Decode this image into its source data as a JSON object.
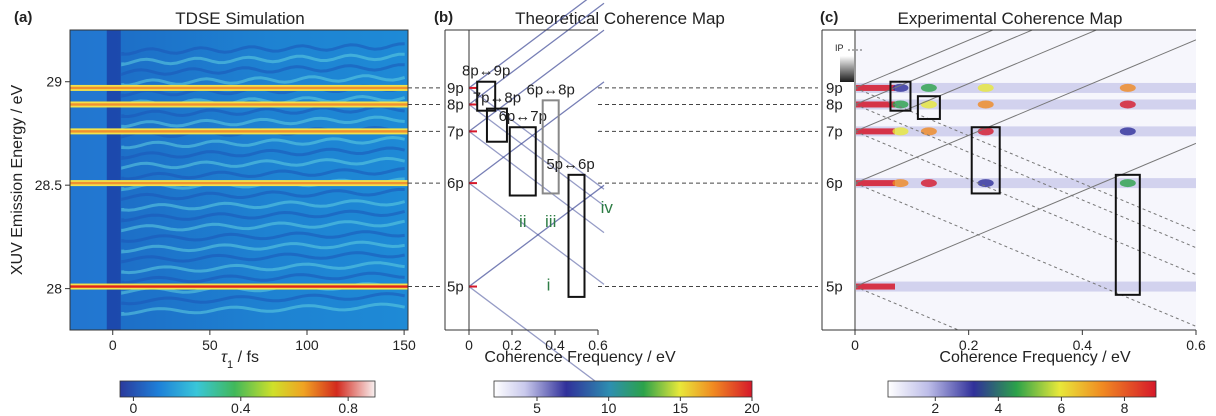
{
  "figure": {
    "shared_ylabel": "XUV Emission Energy / eV",
    "connector_states": [
      "9p",
      "8p",
      "7p",
      "6p",
      "5p"
    ]
  },
  "panels": [
    {
      "label": "(a)",
      "title": "TDSE Simulation",
      "xlabel": "τ1 / fs",
      "xlabel_main": "τ",
      "xlabel_sub": "1",
      "xlabel_unit": " / fs",
      "xticks": [
        "0",
        "50",
        "100",
        "150"
      ],
      "yticks": [
        "29",
        "28.5",
        "28"
      ],
      "colorbar_ticks": [
        "0",
        "0.4",
        "0.8"
      ]
    },
    {
      "label": "(b)",
      "title": "Theoretical Coherence Map",
      "xlabel": "Coherence Frequency / eV",
      "xticks": [
        "0",
        "0.2",
        "0.4",
        "0.6"
      ],
      "state_labels": [
        "9p",
        "8p",
        "7p",
        "6p",
        "5p"
      ],
      "transitions": [
        "8p↔9p",
        "7p↔8p",
        "6p↔7p",
        "6p↔8p",
        "5p↔6p"
      ],
      "markers": [
        "i",
        "ii",
        "iii",
        "iv"
      ],
      "colorbar_ticks": [
        "5",
        "10",
        "15",
        "20"
      ]
    },
    {
      "label": "(c)",
      "title": "Experimental Coherence Map",
      "xlabel": "Coherence Frequency / eV",
      "xticks": [
        "0",
        "0.2",
        "0.4",
        "0.6"
      ],
      "state_labels": [
        "9p",
        "8p",
        "7p",
        "6p",
        "5p"
      ],
      "ip_label": "IP",
      "colorbar_ticks": [
        "2",
        "4",
        "6",
        "8"
      ]
    }
  ],
  "chart_data": [
    {
      "type": "heatmap",
      "title": "TDSE Simulation",
      "xlabel": "τ1 / fs",
      "ylabel": "XUV Emission Energy / eV",
      "xlim": [
        -22,
        152
      ],
      "ylim": [
        27.8,
        29.25
      ],
      "energy_lines_ev": [
        28.01,
        28.51,
        28.76,
        28.89,
        28.97
      ],
      "colorbar": {
        "range": [
          -0.05,
          0.9
        ],
        "ticks": [
          0,
          0.4,
          0.8
        ]
      }
    },
    {
      "type": "heatmap",
      "title": "Theoretical Coherence Map",
      "xlabel": "Coherence Frequency / eV",
      "xlim": [
        0,
        0.6
      ],
      "states_ev": {
        "5p": 28.01,
        "6p": 28.51,
        "7p": 28.76,
        "8p": 28.89,
        "9p": 28.97
      },
      "transitions": [
        {
          "name": "8p↔9p",
          "freq_ev": 0.08
        },
        {
          "name": "7p↔8p",
          "freq_ev": 0.13
        },
        {
          "name": "6p↔7p",
          "freq_ev": 0.25
        },
        {
          "name": "6p↔8p",
          "freq_ev": 0.38
        },
        {
          "name": "5p↔6p",
          "freq_ev": 0.5
        }
      ],
      "colorbar": {
        "range": [
          2,
          20
        ],
        "ticks": [
          5,
          10,
          15,
          20
        ]
      }
    },
    {
      "type": "heatmap",
      "title": "Experimental Coherence Map",
      "xlabel": "Coherence Frequency / eV",
      "xlim": [
        0,
        0.6
      ],
      "states_ev": {
        "5p": 28.01,
        "6p": 28.51,
        "7p": 28.76,
        "8p": 28.89,
        "9p": 28.97
      },
      "highlight_freqs_ev": [
        0.08,
        0.13,
        0.23,
        0.48
      ],
      "colorbar": {
        "range": [
          0.5,
          9
        ],
        "ticks": [
          2,
          4,
          6,
          8
        ]
      }
    }
  ]
}
